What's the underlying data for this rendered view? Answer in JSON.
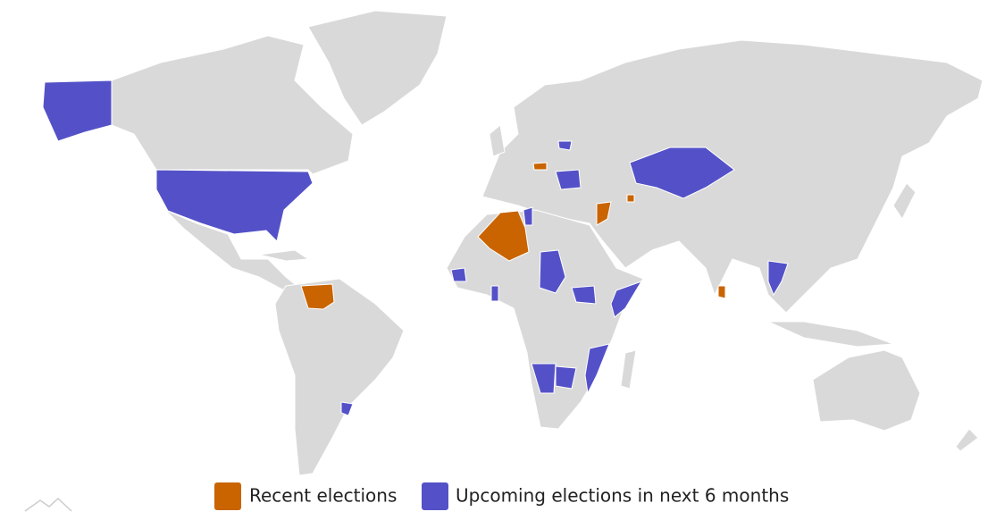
{
  "legend": {
    "items": [
      {
        "name": "Recent elections",
        "color": "#c96400"
      },
      {
        "name": "Upcoming elections in next 6 months",
        "color": "#5451c8"
      }
    ]
  }
}
